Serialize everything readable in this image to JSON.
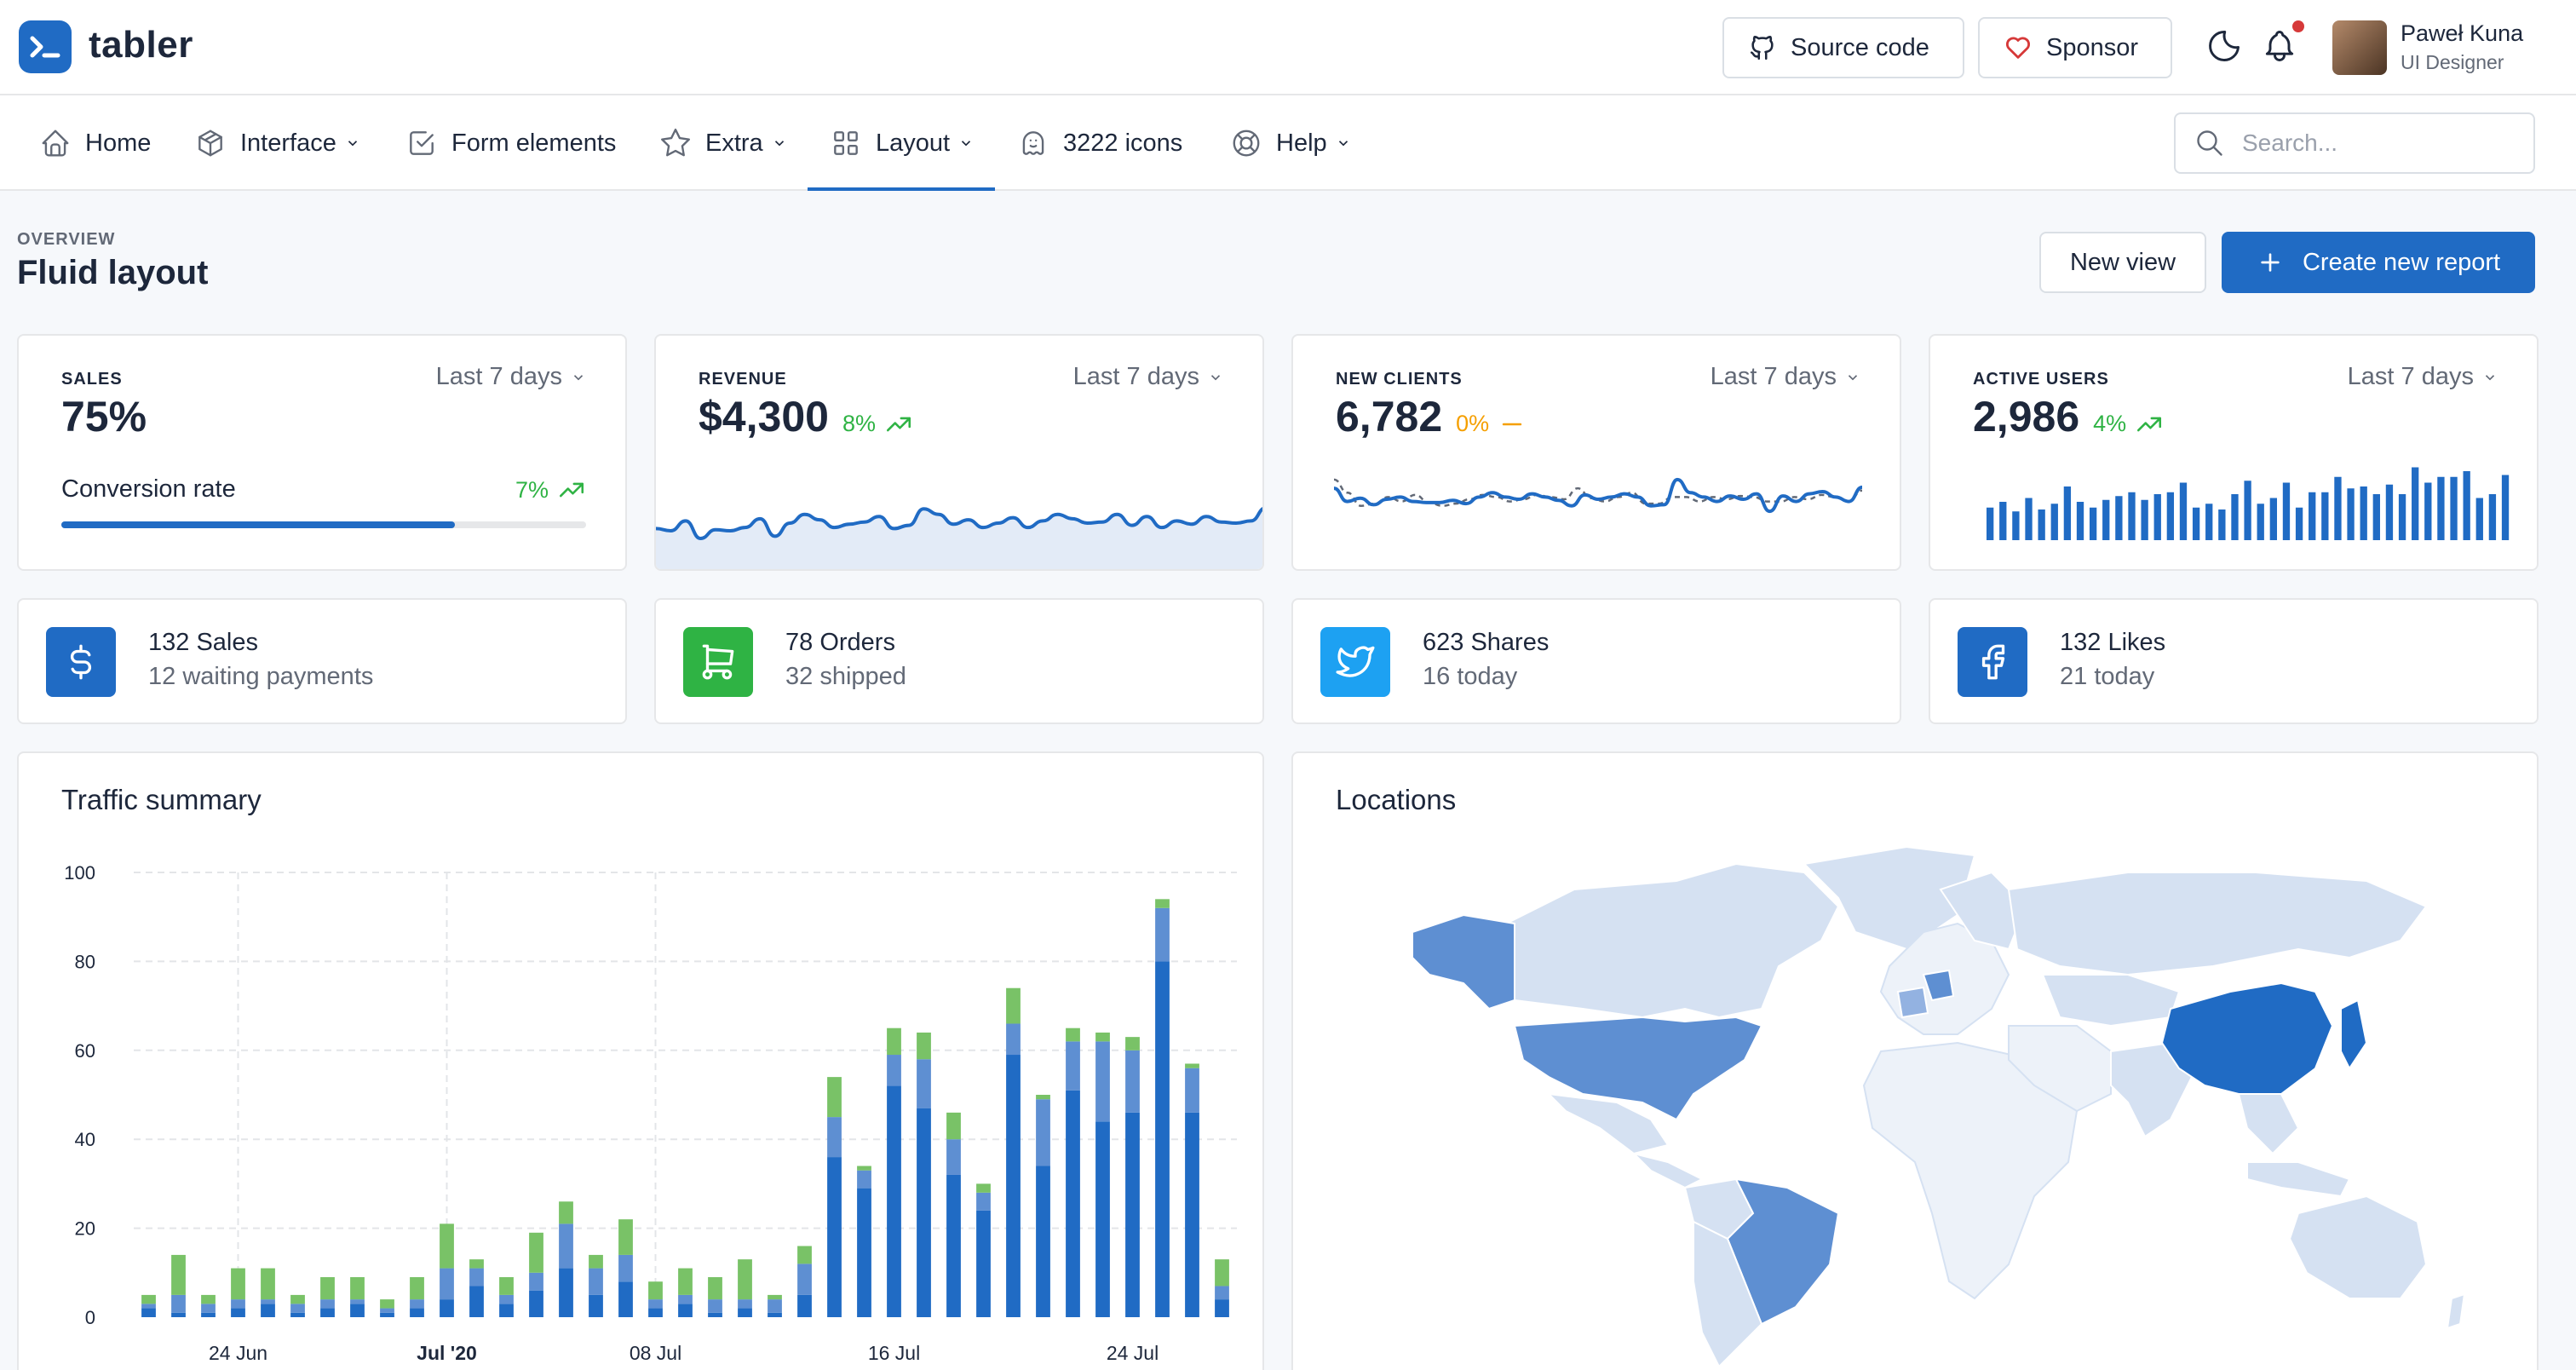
{
  "brand": {
    "name": "tabler",
    "logo_icon": "terminal-icon",
    "color": "#206bc4"
  },
  "header": {
    "source_code": "Source code",
    "sponsor": "Sponsor",
    "user": {
      "name": "Paweł Kuna",
      "role": "UI Designer"
    },
    "notification_dot_color": "#d63939"
  },
  "nav": {
    "items": [
      {
        "label": "Home",
        "icon": "home-icon"
      },
      {
        "label": "Interface",
        "icon": "package-icon",
        "dropdown": true
      },
      {
        "label": "Form elements",
        "icon": "checkbox-icon"
      },
      {
        "label": "Extra",
        "icon": "star-icon",
        "dropdown": true
      },
      {
        "label": "Layout",
        "icon": "layout-icon",
        "dropdown": true,
        "active": true
      },
      {
        "label": "3222 icons",
        "icon": "ghost-icon"
      },
      {
        "label": "Help",
        "icon": "lifebuoy-icon",
        "dropdown": true
      }
    ],
    "search_placeholder": "Search..."
  },
  "page": {
    "pretitle": "OVERVIEW",
    "title": "Fluid layout",
    "new_view": "New view",
    "create_report": "Create new report"
  },
  "stats": [
    {
      "label": "SALES",
      "period": "Last 7 days",
      "value": "75%",
      "sub_label": "Conversion rate",
      "change": "7%",
      "trend": "up",
      "progress": 0.75
    },
    {
      "label": "REVENUE",
      "period": "Last 7 days",
      "value": "$4,300",
      "change": "8%",
      "trend": "up"
    },
    {
      "label": "NEW CLIENTS",
      "period": "Last 7 days",
      "value": "6,782",
      "change": "0%",
      "trend": "flat"
    },
    {
      "label": "ACTIVE USERS",
      "period": "Last 7 days",
      "value": "2,986",
      "change": "4%",
      "trend": "up"
    }
  ],
  "summary": [
    {
      "title": "132 Sales",
      "subtitle": "12 waiting payments",
      "icon": "currency-dollar-icon",
      "color": "#206bc4"
    },
    {
      "title": "78 Orders",
      "subtitle": "32 shipped",
      "icon": "shopping-cart-icon",
      "color": "#2fb344"
    },
    {
      "title": "623 Shares",
      "subtitle": "16 today",
      "icon": "twitter-icon",
      "color": "#1da1f2"
    },
    {
      "title": "132 Likes",
      "subtitle": "21 today",
      "icon": "facebook-icon",
      "color": "#3b5998"
    }
  ],
  "traffic": {
    "title": "Traffic summary"
  },
  "locations": {
    "title": "Locations"
  },
  "colors": {
    "primary": "#206bc4",
    "primary_light": "#5e8fd2",
    "green": "#79c267",
    "success": "#2fb344",
    "warning": "#f59f00"
  },
  "chart_data": [
    {
      "type": "area",
      "title": "",
      "values": [
        37,
        35,
        44,
        28,
        36,
        35,
        38,
        46,
        30,
        42,
        50,
        45,
        38,
        41,
        43,
        48,
        37,
        40,
        55,
        50,
        41,
        45,
        38,
        42,
        47,
        38,
        44,
        50,
        46,
        42,
        43,
        50,
        40,
        48,
        38,
        44,
        41,
        48,
        43,
        42,
        44,
        56
      ]
    },
    {
      "type": "line",
      "title": "",
      "series": [
        {
          "values": [
            52,
            40,
            43,
            37,
            42,
            44,
            40,
            39,
            39,
            41,
            38,
            44,
            48,
            44,
            42,
            47,
            44,
            41,
            36,
            46,
            42,
            44,
            47,
            44,
            36,
            37,
            60,
            48,
            44,
            40,
            45,
            42,
            47,
            31,
            45,
            40,
            47,
            49,
            44,
            40,
            53
          ]
        },
        {
          "values": [
            60,
            48,
            36,
            38,
            44,
            40,
            46,
            39,
            36,
            38,
            42,
            46,
            44,
            40,
            42,
            46,
            44,
            42,
            52,
            43,
            40,
            44,
            48,
            38,
            38,
            44,
            44,
            40,
            44,
            42,
            45,
            44,
            40,
            40,
            44,
            42,
            46,
            44,
            40,
            50
          ]
        }
      ]
    },
    {
      "type": "bar",
      "title": "",
      "values": [
        17,
        20,
        15,
        22,
        16,
        19,
        28,
        20,
        17,
        21,
        23,
        25,
        21,
        24,
        25,
        30,
        17,
        19,
        16,
        24,
        31,
        19,
        22,
        30,
        17,
        25,
        25,
        33,
        27,
        28,
        24,
        29,
        24,
        38,
        30,
        33,
        33,
        36,
        22,
        24,
        34
      ]
    },
    {
      "type": "bar",
      "title": "Traffic summary",
      "stacked": true,
      "x": [
        "06-21",
        "06-22",
        "06-23",
        "06-24",
        "06-25",
        "06-26",
        "06-27",
        "06-28",
        "06-29",
        "06-30",
        "07-01",
        "07-02",
        "07-03",
        "07-04",
        "07-05",
        "07-06",
        "07-07",
        "07-08",
        "07-09",
        "07-10",
        "07-11",
        "07-12",
        "07-13",
        "07-14",
        "07-15",
        "07-16",
        "07-17",
        "07-18",
        "07-19",
        "07-20",
        "07-21",
        "07-22",
        "07-23",
        "07-24",
        "07-25",
        "07-26",
        "07-27"
      ],
      "x_ticks": [
        "24 Jun",
        "Jul '20",
        "08 Jul",
        "16 Jul",
        "24 Jul"
      ],
      "ylim": [
        0,
        100
      ],
      "y_ticks": [
        0,
        20,
        40,
        60,
        80,
        100
      ],
      "grid": true,
      "series": [
        {
          "color": "#206bc4",
          "values": [
            2,
            1,
            1,
            2,
            3,
            1,
            2,
            3,
            1,
            2,
            4,
            7,
            3,
            6,
            11,
            5,
            8,
            2,
            3,
            1,
            2,
            1,
            5,
            36,
            29,
            52,
            47,
            32,
            24,
            59,
            34,
            51,
            44,
            46,
            80,
            46,
            4
          ]
        },
        {
          "color": "#5e8fd2",
          "values": [
            1,
            4,
            2,
            2,
            1,
            2,
            2,
            1,
            1,
            2,
            7,
            4,
            2,
            4,
            10,
            6,
            6,
            2,
            2,
            3,
            2,
            3,
            7,
            9,
            4,
            7,
            11,
            8,
            4,
            7,
            15,
            11,
            18,
            14,
            12,
            10,
            3
          ]
        },
        {
          "color": "#79c267",
          "values": [
            2,
            9,
            2,
            7,
            7,
            2,
            5,
            5,
            2,
            5,
            10,
            2,
            4,
            9,
            5,
            3,
            8,
            4,
            6,
            5,
            9,
            1,
            4,
            9,
            1,
            6,
            6,
            6,
            2,
            8,
            1,
            3,
            2,
            3,
            2,
            1,
            6
          ]
        }
      ]
    }
  ]
}
